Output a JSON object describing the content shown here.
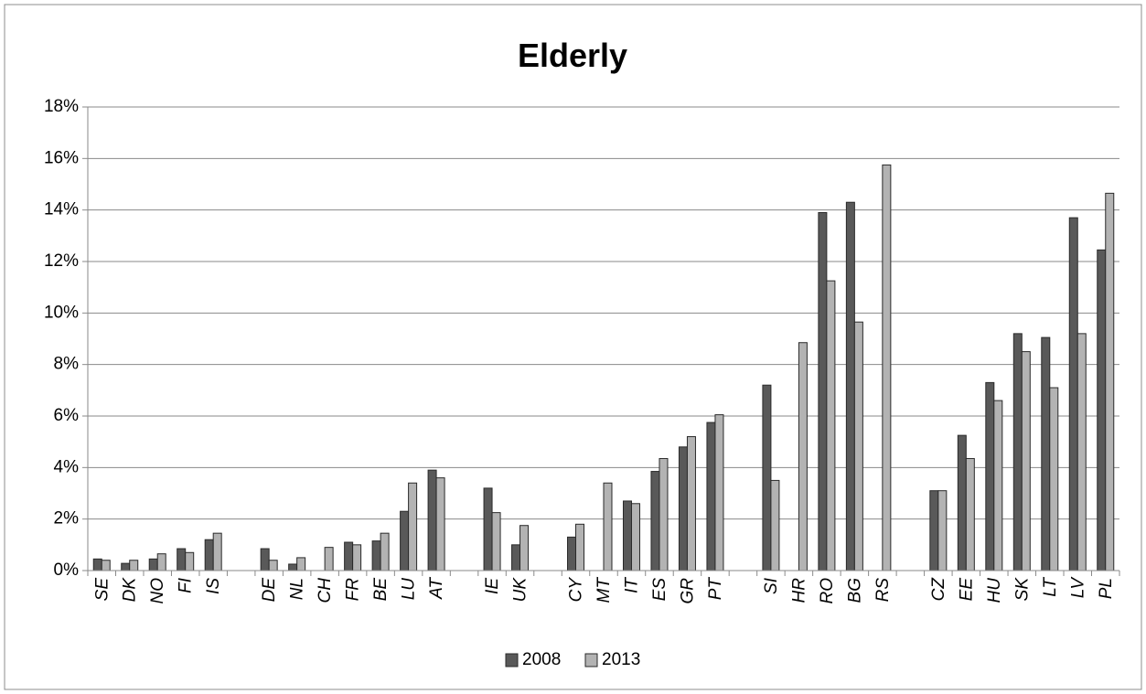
{
  "chart_data": {
    "type": "bar",
    "title": "Elderly",
    "xlabel": "",
    "ylabel": "",
    "ylim": [
      0,
      18
    ],
    "yticks": [
      "0%",
      "2%",
      "4%",
      "6%",
      "8%",
      "10%",
      "12%",
      "14%",
      "16%",
      "18%"
    ],
    "y_unit": "%",
    "grid": true,
    "legend_position": "bottom",
    "colors": {
      "2008": "#595959",
      "2013": "#b3b3b3"
    },
    "categories": [
      "SE",
      "DK",
      "NO",
      "FI",
      "IS",
      "",
      "DE",
      "NL",
      "CH",
      "FR",
      "BE",
      "LU",
      "AT",
      "",
      "IE",
      "UK",
      "",
      "CY",
      "MT",
      "IT",
      "ES",
      "GR",
      "PT",
      "",
      "SI",
      "HR",
      "RO",
      "BG",
      "RS",
      "",
      "CZ",
      "EE",
      "HU",
      "SK",
      "LT",
      "LV",
      "PL"
    ],
    "series": [
      {
        "name": "2008",
        "values": [
          0.45,
          0.28,
          0.45,
          0.85,
          1.2,
          null,
          0.85,
          0.25,
          null,
          1.1,
          1.15,
          2.3,
          3.9,
          null,
          3.2,
          1.0,
          null,
          1.3,
          null,
          2.7,
          3.85,
          4.8,
          5.75,
          null,
          7.2,
          null,
          13.9,
          14.3,
          null,
          null,
          3.1,
          5.25,
          7.3,
          9.2,
          9.05,
          13.7,
          12.45
        ]
      },
      {
        "name": "2013",
        "values": [
          0.4,
          0.4,
          0.65,
          0.7,
          1.45,
          null,
          0.4,
          0.5,
          0.9,
          1.0,
          1.45,
          3.4,
          3.6,
          null,
          2.25,
          1.75,
          null,
          1.8,
          3.4,
          2.6,
          4.35,
          5.2,
          6.05,
          null,
          3.5,
          8.85,
          11.25,
          9.65,
          15.75,
          null,
          3.1,
          4.35,
          6.6,
          8.5,
          7.1,
          9.2,
          14.65
        ]
      }
    ]
  }
}
